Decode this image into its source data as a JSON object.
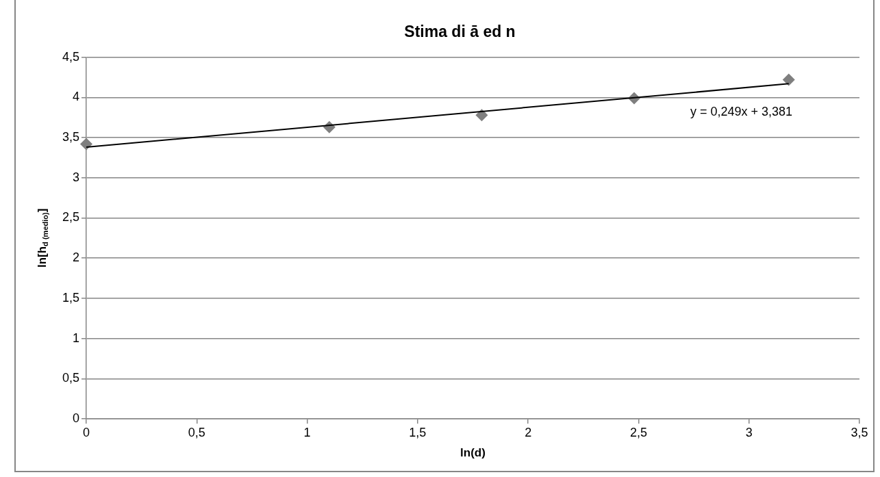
{
  "chart_data": {
    "type": "scatter",
    "title": "Stima di ā ed n",
    "xlabel": "ln(d)",
    "ylabel": "ln[h$_{d (medio)}$]",
    "series": [
      {
        "color": "#7f7f7f",
        "x": [
          0,
          1.1,
          1.79,
          2.48,
          3.18
        ],
        "values": [
          3.42,
          3.63,
          3.78,
          3.99,
          4.22
        ]
      },
      {
        "type": "line",
        "color": "#000000",
        "x": [
          0,
          3.18
        ],
        "values": [
          3.38,
          4.17
        ],
        "marker": "none"
      }
    ],
    "marker": "diamond",
    "xlim": [
      0,
      3.5
    ],
    "xticks": [
      0,
      {
        "value": 0.5,
        "label": "0,5"
      },
      1,
      {
        "value": 1.5,
        "label": "1,5"
      },
      2,
      {
        "value": 2.5,
        "label": "2,5"
      },
      3,
      {
        "value": 3.5,
        "label": "3,5"
      }
    ],
    "ylim": [
      0,
      4.5
    ],
    "yticks": [
      0,
      {
        "value": 0.5,
        "label": "0,5"
      },
      1,
      {
        "value": 1.5,
        "label": "1,5"
      },
      2,
      {
        "value": 2.5,
        "label": "2,5"
      },
      3,
      {
        "value": 3.5,
        "label": "3,5"
      },
      4,
      {
        "value": 4.5,
        "label": "4,5"
      }
    ],
    "grid": "y",
    "legend": false,
    "annotations": [
      "y = 0,249x + 3,381"
    ]
  }
}
